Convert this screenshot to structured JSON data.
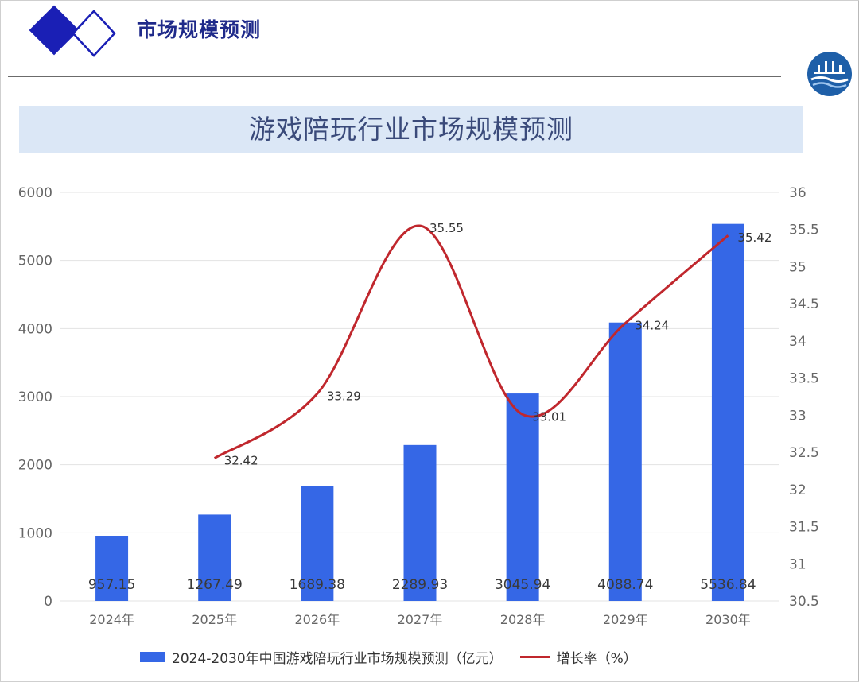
{
  "header": {
    "section_title": "市场规模预测"
  },
  "colors": {
    "bar": "#3567e6",
    "line": "#c0272d",
    "grid": "#e3e3e3",
    "axis_text": "#666666",
    "title_band": "#dbe7f6",
    "brand_dark": "#1a1fb5"
  },
  "chart_data": {
    "type": "bar",
    "title": "游戏陪玩行业市场规模预测",
    "categories": [
      "2024年",
      "2025年",
      "2026年",
      "2027年",
      "2028年",
      "2029年",
      "2030年"
    ],
    "series": [
      {
        "name": "2024-2030年中国游戏陪玩行业市场规模预测（亿元）",
        "type": "bar",
        "axis": "left",
        "values": [
          957.15,
          1267.49,
          1689.38,
          2289.93,
          3045.94,
          4088.74,
          5536.84
        ],
        "labels": [
          "957.15",
          "1267.49",
          "1689.38",
          "2289.93",
          "3045.94",
          "4088.74",
          "5536.84"
        ]
      },
      {
        "name": "增长率（%）",
        "type": "line",
        "axis": "right",
        "values": [
          null,
          32.42,
          33.29,
          35.55,
          33.01,
          34.24,
          35.42
        ],
        "labels": [
          "",
          "32.42",
          "33.29",
          "35.55",
          "33.01",
          "34.24",
          "35.42"
        ]
      }
    ],
    "left_axis": {
      "ylim": [
        0,
        6000
      ],
      "ticks": [
        "0",
        "1000",
        "2000",
        "3000",
        "4000",
        "5000",
        "6000"
      ]
    },
    "right_axis": {
      "ylim": [
        30.5,
        36
      ],
      "ticks": [
        "30.5",
        "31",
        "31.5",
        "32",
        "32.5",
        "33",
        "33.5",
        "34",
        "34.5",
        "35",
        "35.5",
        "36"
      ]
    },
    "grid": true,
    "legend_position": "bottom"
  }
}
